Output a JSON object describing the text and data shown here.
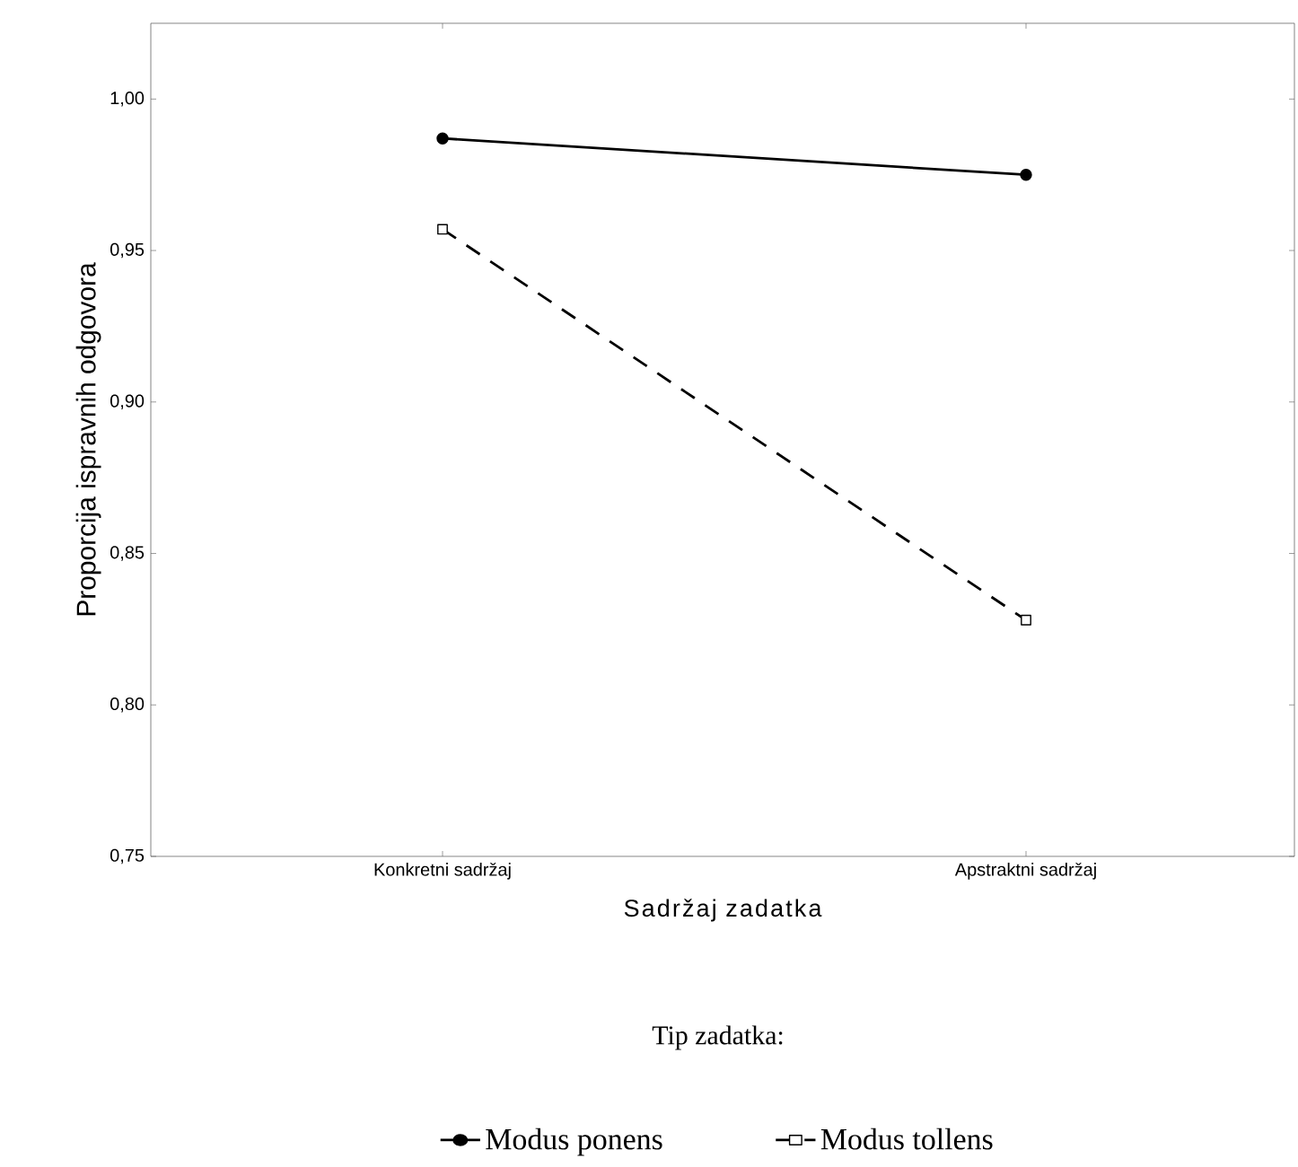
{
  "chart_data": {
    "type": "line",
    "xlabel": "Sadržaj zadatka",
    "ylabel": "Proporcija ispravnih odgovora",
    "legend_title": "Tip zadatka:",
    "categories": [
      "Konkretni sadržaj",
      "Apstraktni sadržaj"
    ],
    "series": [
      {
        "name": "Modus ponens",
        "color": "#000000",
        "values": [
          0.987,
          0.975
        ],
        "marker": "circle",
        "line_style": "solid"
      },
      {
        "name": "Modus tollens",
        "color": "#000000",
        "values": [
          0.957,
          0.828
        ],
        "marker": "square",
        "line_style": "dashed"
      }
    ],
    "ylim": [
      0.75,
      1.025
    ],
    "yticks": [
      {
        "value": 0.75,
        "label": "0,75"
      },
      {
        "value": 0.8,
        "label": "0,80"
      },
      {
        "value": 0.85,
        "label": "0,85"
      },
      {
        "value": 0.9,
        "label": "0,90"
      },
      {
        "value": 0.95,
        "label": "0,95"
      },
      {
        "value": 1.0,
        "label": "1,00"
      }
    ],
    "grid": false,
    "legend": "bottom"
  }
}
